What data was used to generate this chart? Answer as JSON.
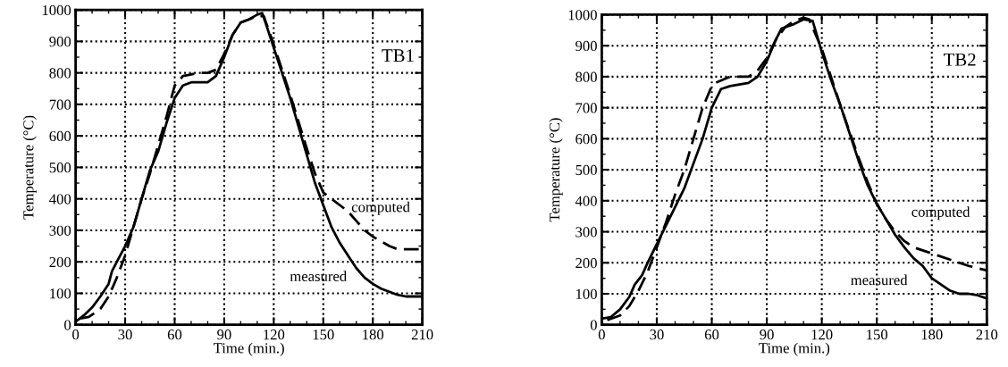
{
  "chart_data": [
    {
      "type": "line",
      "xlabel": "Time (min.)",
      "ylabel": "Temperature (°C)",
      "xlim": [
        0,
        210
      ],
      "ylim": [
        0,
        1000
      ],
      "xticks": [
        0,
        30,
        60,
        90,
        120,
        150,
        180,
        210
      ],
      "yticks": [
        0,
        100,
        200,
        300,
        400,
        500,
        600,
        700,
        800,
        900,
        1000
      ],
      "grid": true,
      "legend": false,
      "marker": "none",
      "series": [
        {
          "color": "#000000",
          "line_style": "solid",
          "x": [
            0,
            5,
            10,
            15,
            20,
            22,
            25,
            30,
            35,
            40,
            45,
            50,
            55,
            60,
            65,
            70,
            75,
            80,
            85,
            90,
            95,
            100,
            105,
            110,
            113,
            115,
            120,
            125,
            130,
            135,
            140,
            145,
            150,
            155,
            160,
            165,
            170,
            175,
            180,
            185,
            190,
            195,
            200,
            210
          ],
          "values": [
            10,
            30,
            55,
            90,
            130,
            170,
            200,
            250,
            310,
            400,
            490,
            550,
            640,
            720,
            760,
            770,
            770,
            770,
            790,
            850,
            920,
            960,
            970,
            985,
            990,
            960,
            880,
            800,
            720,
            630,
            540,
            450,
            380,
            310,
            260,
            220,
            180,
            150,
            130,
            115,
            105,
            95,
            90,
            90
          ]
        },
        {
          "color": "#000000",
          "line_style": "dashed",
          "x": [
            3,
            8,
            15,
            20,
            25,
            30,
            35,
            40,
            45,
            50,
            55,
            60,
            65,
            70,
            75,
            80,
            85,
            90,
            95,
            100,
            110,
            114,
            120,
            130,
            140,
            145,
            150,
            155,
            160,
            165,
            170,
            175,
            180,
            185,
            190,
            195,
            210
          ],
          "values": [
            20,
            25,
            50,
            90,
            150,
            220,
            310,
            400,
            480,
            570,
            660,
            760,
            790,
            795,
            800,
            800,
            810,
            860,
            920,
            960,
            980,
            980,
            890,
            730,
            560,
            480,
            420,
            400,
            380,
            360,
            330,
            300,
            280,
            265,
            250,
            240,
            240
          ]
        }
      ],
      "annotations": [
        "TB1",
        "computed",
        "measured"
      ]
    },
    {
      "type": "line",
      "xlabel": "Time (min.)",
      "ylabel": "Temperature (°C)",
      "xlim": [
        0,
        210
      ],
      "ylim": [
        0,
        1000
      ],
      "xticks": [
        0,
        30,
        60,
        90,
        120,
        150,
        180,
        210
      ],
      "yticks": [
        0,
        100,
        200,
        300,
        400,
        500,
        600,
        700,
        800,
        900,
        1000
      ],
      "grid": true,
      "legend": false,
      "marker": "none",
      "series": [
        {
          "color": "#000000",
          "line_style": "solid",
          "x": [
            0,
            5,
            10,
            15,
            18,
            22,
            25,
            30,
            35,
            40,
            45,
            50,
            55,
            60,
            65,
            70,
            75,
            80,
            85,
            90,
            95,
            98,
            105,
            110,
            115,
            120,
            125,
            130,
            135,
            140,
            145,
            150,
            155,
            160,
            165,
            170,
            175,
            180,
            185,
            190,
            195,
            200,
            205,
            210
          ],
          "values": [
            20,
            25,
            50,
            90,
            130,
            160,
            200,
            260,
            320,
            380,
            440,
            520,
            600,
            700,
            760,
            770,
            775,
            780,
            800,
            850,
            920,
            955,
            970,
            985,
            980,
            880,
            790,
            710,
            620,
            530,
            450,
            390,
            340,
            290,
            250,
            215,
            190,
            150,
            130,
            110,
            100,
            100,
            95,
            85
          ]
        },
        {
          "color": "#000000",
          "line_style": "dashed",
          "x": [
            3,
            10,
            15,
            20,
            25,
            30,
            35,
            40,
            45,
            50,
            55,
            60,
            62,
            70,
            80,
            85,
            90,
            95,
            100,
            105,
            110,
            113,
            120,
            130,
            140,
            145,
            150,
            155,
            160,
            165,
            170,
            180,
            190,
            200,
            210
          ],
          "values": [
            15,
            30,
            60,
            110,
            170,
            250,
            330,
            420,
            500,
            600,
            700,
            770,
            780,
            800,
            800,
            820,
            860,
            920,
            960,
            980,
            990,
            985,
            890,
            710,
            540,
            460,
            390,
            340,
            300,
            270,
            250,
            230,
            210,
            190,
            175
          ]
        }
      ],
      "annotations": [
        "TB2",
        "computed",
        "measured"
      ]
    }
  ]
}
